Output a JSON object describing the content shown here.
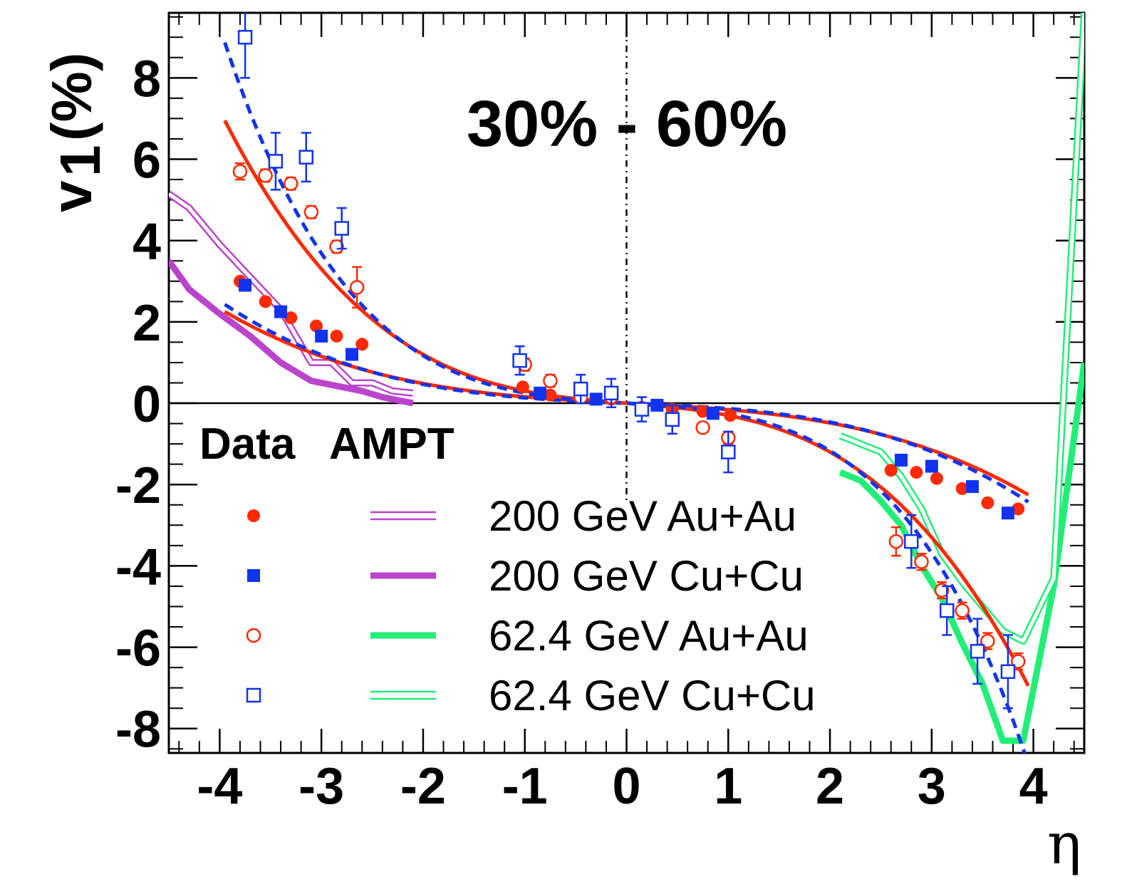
{
  "chart_data": {
    "type": "scatter",
    "title": "",
    "annotation": "30% - 60%",
    "xlabel": "η",
    "ylabel_main": "v",
    "ylabel_sub": "1",
    "ylabel_unit": "(%)",
    "xlim": [
      -4.5,
      4.5
    ],
    "ylim": [
      -8.6,
      9.6
    ],
    "xticks": [
      -4,
      -3,
      -2,
      -1,
      0,
      1,
      2,
      3,
      4
    ],
    "yticks": [
      -8,
      -6,
      -4,
      -2,
      0,
      2,
      4,
      6,
      8
    ],
    "xtick_labels": [
      "-4",
      "-3",
      "-2",
      "-1",
      "0",
      "1",
      "2",
      "3",
      "4"
    ],
    "ytick_labels": [
      "-8",
      "-6",
      "-4",
      "-2",
      "0",
      "2",
      "4",
      "6",
      "8"
    ],
    "legend": {
      "placement": "bottom-center",
      "header_data": "Data",
      "header_model": "AMPT",
      "entries": [
        {
          "label": "200 GeV Au+Au",
          "marker": "filled-circle",
          "marker_color": "#ff2a00",
          "line_color": "#bb44cc",
          "line_style": "double-thin"
        },
        {
          "label": "200 GeV Cu+Cu",
          "marker": "filled-square",
          "marker_color": "#1133ee",
          "line_color": "#bb44cc",
          "line_style": "thick"
        },
        {
          "label": "62.4 GeV Au+Au",
          "marker": "open-circle",
          "marker_color": "#ff2a00",
          "line_color": "#22ee77",
          "line_style": "thick"
        },
        {
          "label": "62.4 GeV Cu+Cu",
          "marker": "open-square",
          "marker_color": "#1133ee",
          "line_color": "#22ee77",
          "line_style": "double-thin"
        }
      ]
    },
    "data_series": [
      {
        "marker": "filled-circle",
        "color": "#ff2a00",
        "x": [
          -3.8,
          -3.55,
          -3.3,
          -3.05,
          -2.85,
          -2.6,
          -1.02,
          -0.75,
          -0.45,
          -0.15,
          0.15,
          0.45,
          0.75,
          1.02,
          2.6,
          2.85,
          3.05,
          3.3,
          3.55,
          3.85
        ],
        "y": [
          3.0,
          2.5,
          2.1,
          1.9,
          1.65,
          1.45,
          0.4,
          0.2,
          0.15,
          0.1,
          -0.1,
          -0.15,
          -0.2,
          -0.3,
          -1.65,
          -1.7,
          -1.85,
          -2.1,
          -2.45,
          -2.6
        ]
      },
      {
        "marker": "filled-square",
        "color": "#1133ee",
        "x": [
          -3.75,
          -3.4,
          -3.0,
          -2.7,
          -0.85,
          -0.3,
          0.3,
          0.85,
          2.7,
          3.0,
          3.4,
          3.75
        ],
        "y": [
          2.9,
          2.25,
          1.65,
          1.2,
          0.25,
          0.1,
          -0.05,
          -0.25,
          -1.4,
          -1.55,
          -2.05,
          -2.7
        ]
      },
      {
        "marker": "open-circle",
        "color": "#ff2a00",
        "x": [
          -3.8,
          -3.55,
          -3.3,
          -3.1,
          -2.85,
          -2.65,
          -1.0,
          -0.75,
          -0.45,
          -0.15,
          0.15,
          0.45,
          0.75,
          1.0,
          2.65,
          2.9,
          3.1,
          3.3,
          3.55,
          3.85
        ],
        "y": [
          5.7,
          5.6,
          5.4,
          4.7,
          3.85,
          2.85,
          0.95,
          0.55,
          0.15,
          0.15,
          -0.15,
          -0.4,
          -0.6,
          -0.85,
          -3.4,
          -3.9,
          -4.6,
          -5.1,
          -5.85,
          -6.35
        ],
        "yerr": [
          0.2,
          0.15,
          0.15,
          0.15,
          0.15,
          0.5,
          0.15,
          0.15,
          0.1,
          0.1,
          0.1,
          0.1,
          0.1,
          0.15,
          0.35,
          0.2,
          0.2,
          0.2,
          0.2,
          0.2
        ]
      },
      {
        "marker": "open-square",
        "color": "#1133ee",
        "x": [
          -3.75,
          -3.45,
          -3.15,
          -2.8,
          -1.05,
          -0.45,
          -0.15,
          0.15,
          0.45,
          1.0,
          2.8,
          3.15,
          3.45,
          3.75
        ],
        "y": [
          9.0,
          5.95,
          6.05,
          4.3,
          1.05,
          0.35,
          0.25,
          -0.15,
          -0.4,
          -1.2,
          -3.4,
          -5.1,
          -6.1,
          -6.6
        ],
        "yerr": [
          1.0,
          0.7,
          0.6,
          0.5,
          0.35,
          0.35,
          0.35,
          0.3,
          0.35,
          0.5,
          0.65,
          0.6,
          0.8,
          0.9
        ]
      }
    ],
    "fit_curves": [
      {
        "color": "#ff2a00",
        "style": "solid",
        "x_range": [
          -3.95,
          3.95
        ],
        "form": "a*x + c*x^3",
        "a": -0.13,
        "c": -0.0282
      },
      {
        "color": "#1133ee",
        "style": "dashed",
        "x_range": [
          -3.95,
          3.95
        ],
        "form": "a*x + c*x^3",
        "a": -0.1,
        "c": -0.033
      },
      {
        "color": "#ff2a00",
        "style": "solid",
        "x_range": [
          -3.95,
          3.95
        ],
        "form": "a*x + c*x^3",
        "a": -0.2,
        "c": -0.1
      },
      {
        "color": "#1133ee",
        "style": "dashed",
        "x_range": [
          -3.95,
          3.95
        ],
        "form": "a*x + c*x^3 + e*x^5",
        "a": -0.15,
        "c": -0.1,
        "e": -0.0022
      }
    ],
    "model_series": [
      {
        "color": "#bb44cc",
        "style": "double-thin",
        "x": [
          -4.5,
          -4.3,
          -4.0,
          -3.7,
          -3.4,
          -3.1,
          -2.9,
          -2.7,
          -2.5,
          -2.3,
          -2.1
        ],
        "y": [
          5.15,
          4.8,
          3.9,
          3.1,
          2.3,
          1.0,
          1.0,
          0.5,
          0.5,
          0.3,
          0.25
        ]
      },
      {
        "color": "#bb44cc",
        "style": "thick",
        "x": [
          -4.5,
          -4.3,
          -4.0,
          -3.7,
          -3.4,
          -3.1,
          -2.8,
          -2.6,
          -2.4,
          -2.2,
          -2.1
        ],
        "y": [
          3.5,
          2.8,
          2.2,
          1.65,
          1.0,
          0.55,
          0.4,
          0.3,
          0.15,
          0.05,
          0.0
        ]
      },
      {
        "color": "#22ee77",
        "style": "thick",
        "x": [
          2.1,
          2.3,
          2.5,
          2.7,
          2.9,
          3.1,
          3.3,
          3.5,
          3.7,
          3.9,
          4.2,
          4.5
        ],
        "y": [
          -1.7,
          -1.9,
          -2.4,
          -3.0,
          -4.0,
          -4.8,
          -5.9,
          -6.9,
          -8.3,
          -8.3,
          -4.5,
          1.0
        ]
      },
      {
        "color": "#22ee77",
        "style": "double-thin",
        "x": [
          2.1,
          2.3,
          2.5,
          2.7,
          2.9,
          3.1,
          3.3,
          3.5,
          3.7,
          3.9,
          4.2,
          4.5
        ],
        "y": [
          -0.8,
          -1.0,
          -1.2,
          -1.8,
          -2.6,
          -3.7,
          -4.4,
          -5.0,
          -5.6,
          -5.85,
          -4.3,
          9.6
        ]
      }
    ],
    "zero_line": true,
    "x_zero_dashed_line": true
  }
}
